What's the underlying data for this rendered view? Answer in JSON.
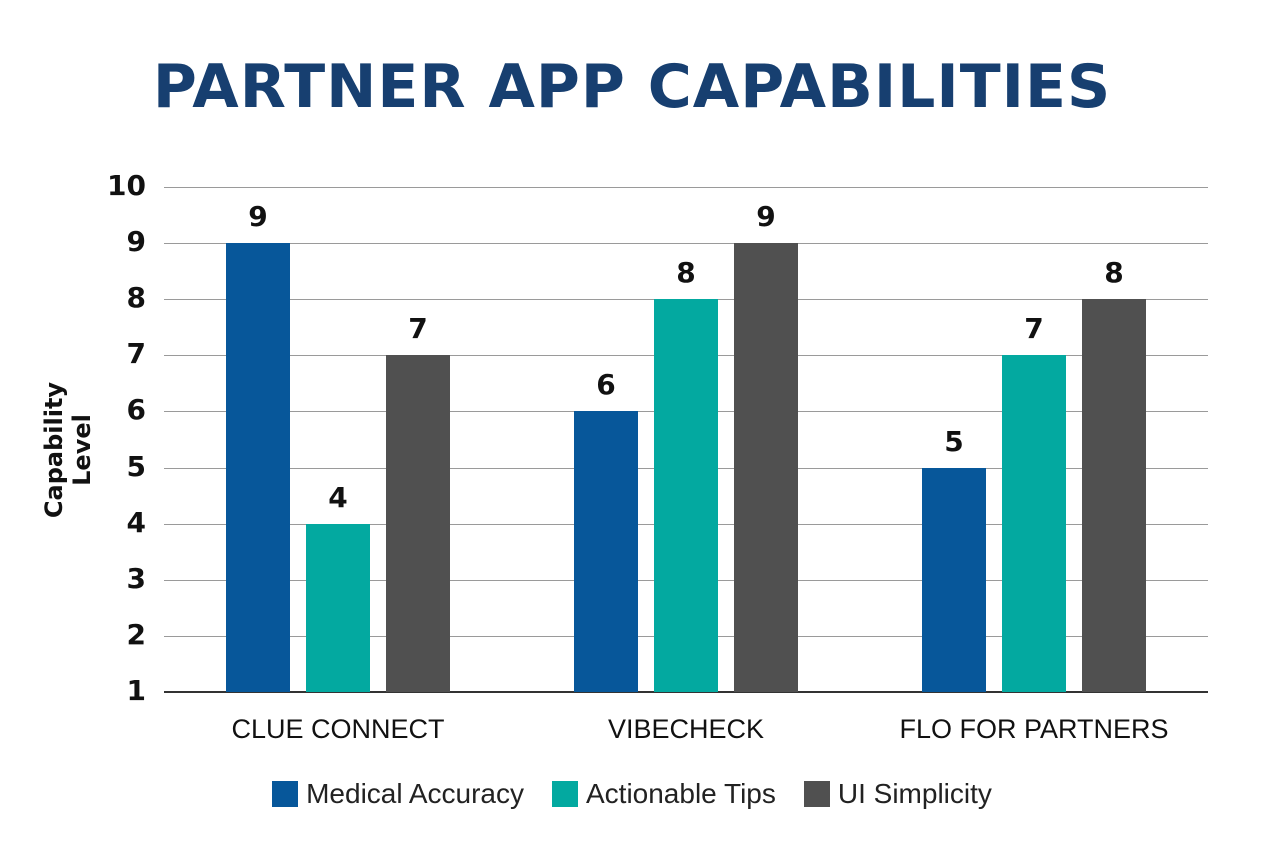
{
  "title": "PARTNER APP CAPABILITIES",
  "colors": {
    "title": "#173f70",
    "medical_accuracy": "#07579a",
    "actionable_tips": "#03a9a0",
    "ui_simplicity": "#505050"
  },
  "chart_data": {
    "type": "bar",
    "title": "PARTNER APP CAPABILITIES",
    "xlabel": "",
    "ylabel": "Capability Level",
    "ylim": [
      1,
      10
    ],
    "yticks": [
      "10",
      "9",
      "8",
      "7",
      "6",
      "5",
      "4",
      "3",
      "2",
      "1"
    ],
    "grid": true,
    "legend_position": "bottom",
    "categories": [
      "CLUE CONNECT",
      "VIBECHECK",
      "FLO FOR PARTNERS"
    ],
    "series": [
      {
        "name": "Medical Accuracy",
        "values": [
          9,
          6,
          5
        ]
      },
      {
        "name": "Actionable Tips",
        "values": [
          4,
          8,
          7
        ]
      },
      {
        "name": "UI Simplicity",
        "values": [
          7,
          9,
          8
        ]
      }
    ],
    "data_labels": {
      "CLUE CONNECT": [
        "9",
        "4",
        "7"
      ],
      "VIBECHECK": [
        "6",
        "8",
        "9"
      ],
      "FLO FOR PARTNERS": [
        "5",
        "7",
        "8"
      ]
    }
  }
}
